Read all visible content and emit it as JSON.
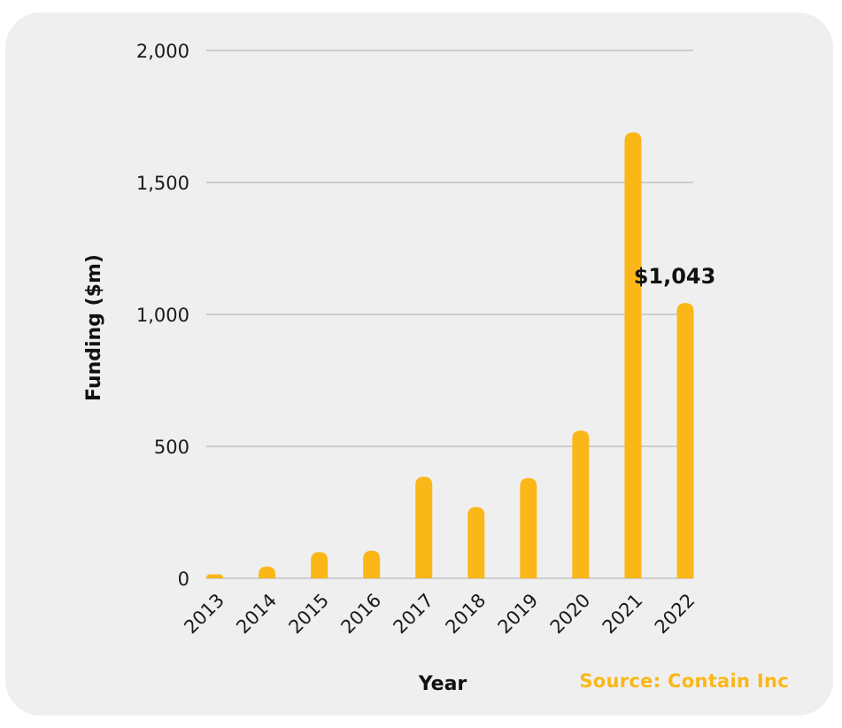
{
  "chart_data": {
    "type": "bar",
    "xlabel": "Year",
    "ylabel": "Funding ($m)",
    "categories": [
      "2013",
      "2014",
      "2015",
      "2016",
      "2017",
      "2018",
      "2019",
      "2020",
      "2021",
      "2022"
    ],
    "values": [
      15,
      45,
      100,
      105,
      385,
      270,
      380,
      560,
      1690,
      1043
    ],
    "ylim": [
      0,
      2000
    ],
    "yticks": [
      0,
      500,
      1000,
      1500,
      2000
    ],
    "ytick_labels": [
      "0",
      "500",
      "1,000",
      "1,500",
      "2,000"
    ],
    "grid": true,
    "bar_color": "#fbb717",
    "annotation": {
      "category": "2022",
      "text": "$1,043"
    },
    "source": "Source: Contain Inc"
  }
}
